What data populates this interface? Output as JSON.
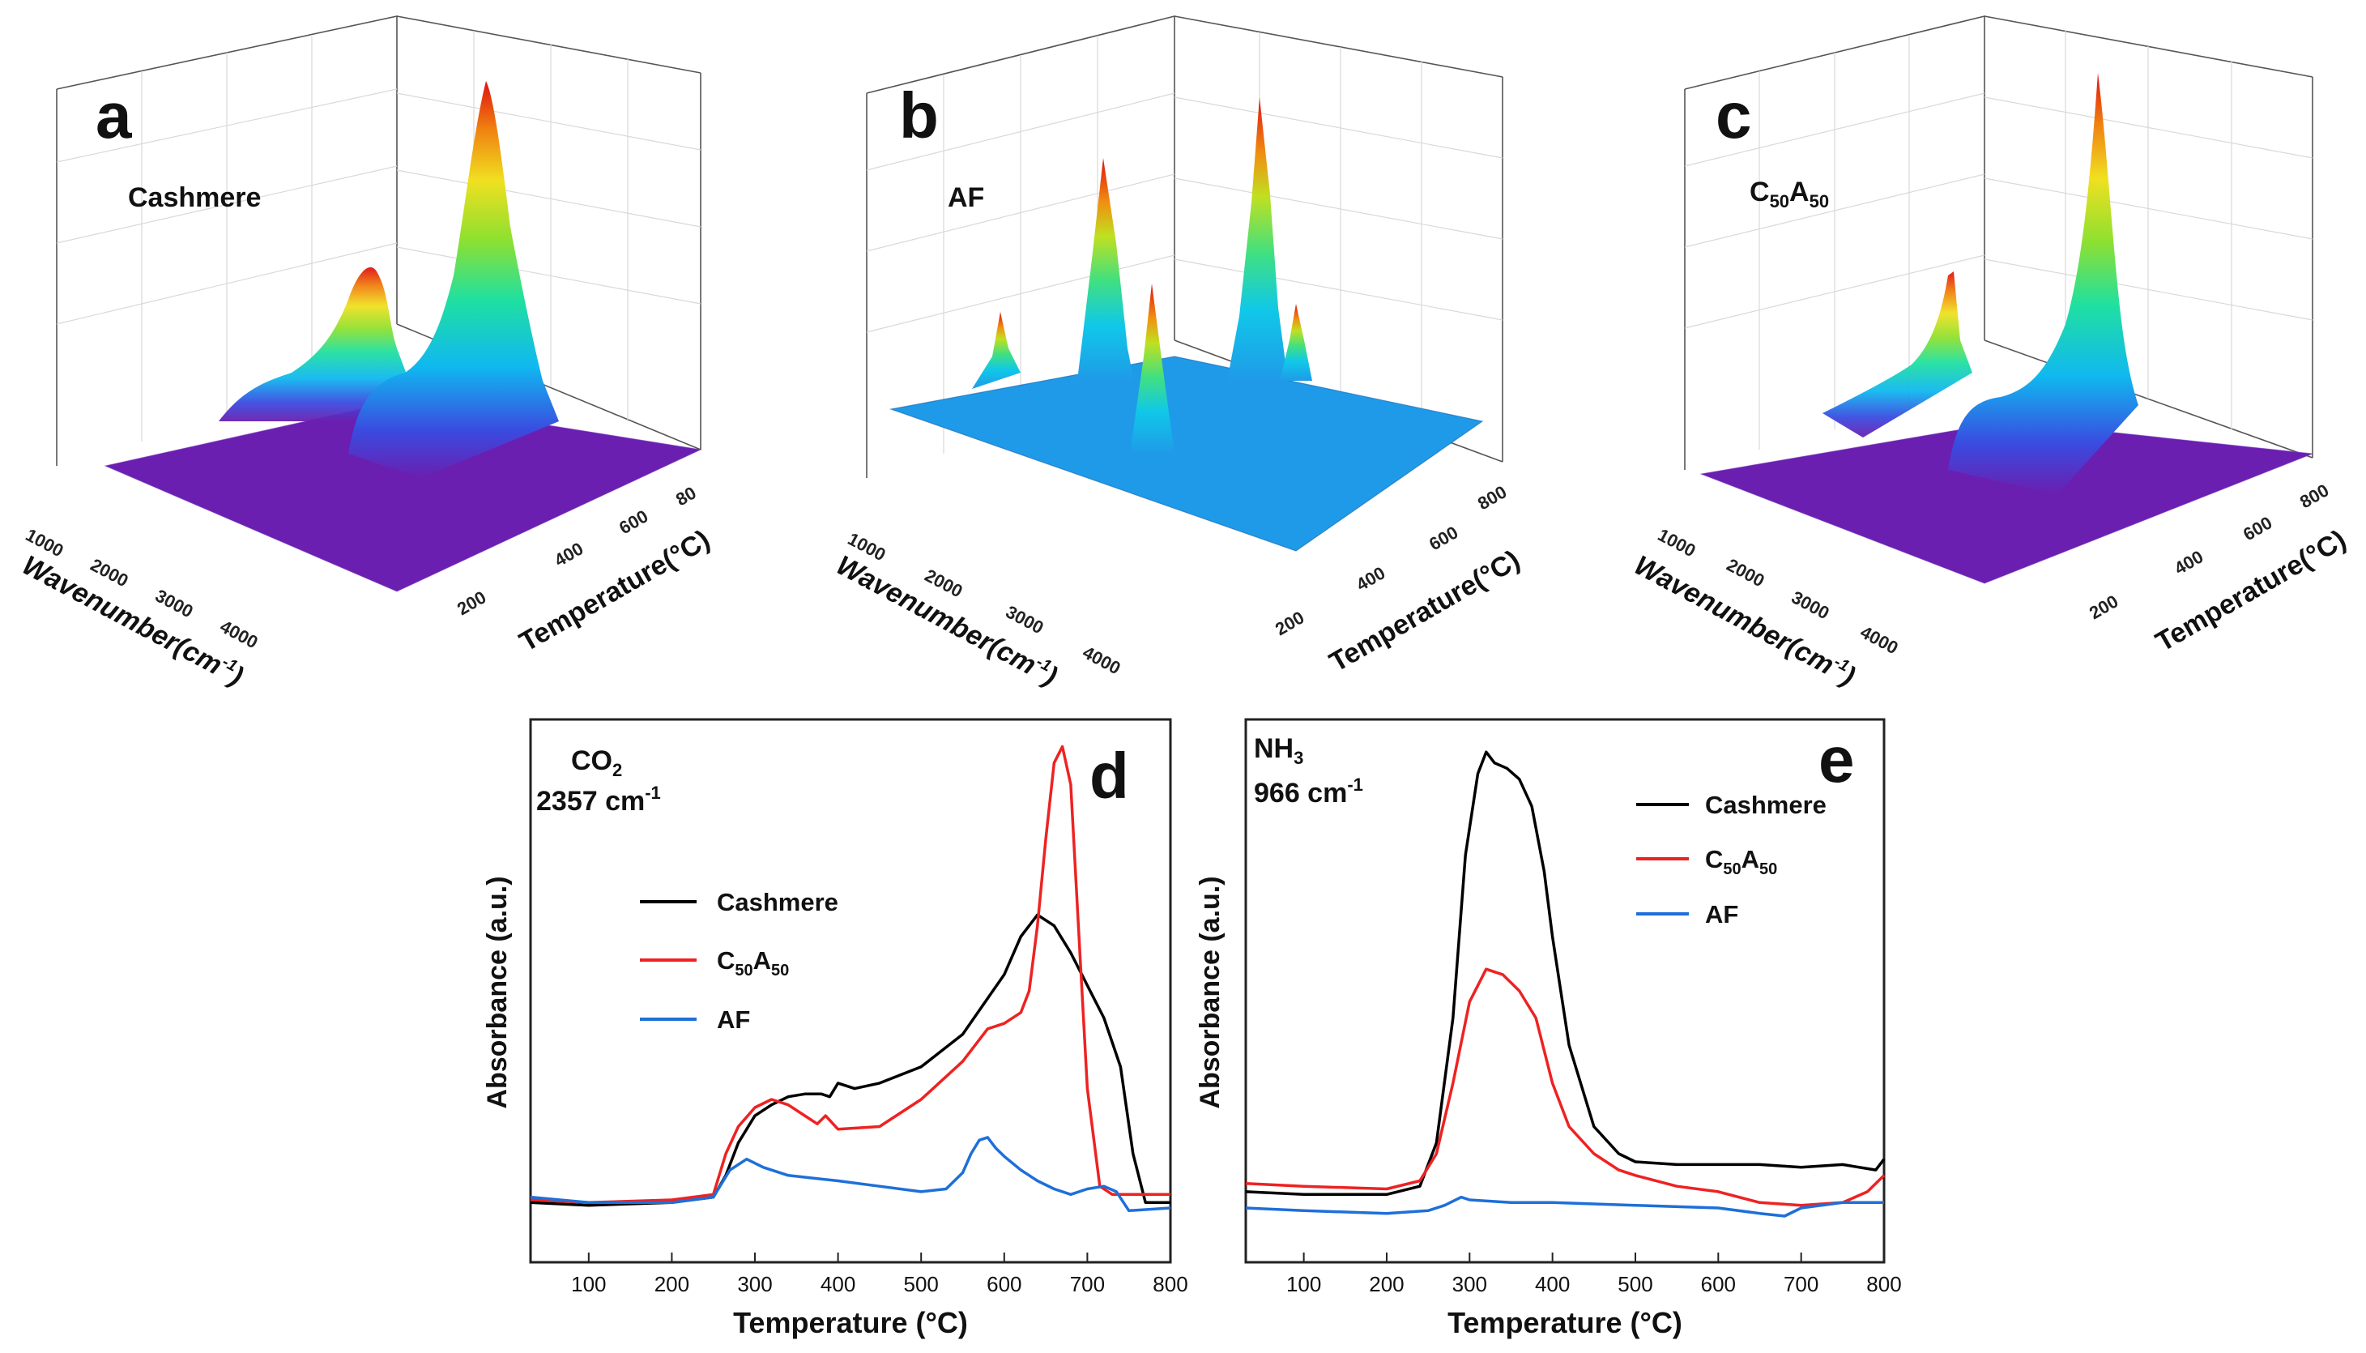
{
  "colors": {
    "cashmere": "#000000",
    "c50a50": "#ee2222",
    "af": "#1e6fd9",
    "surface_low": "#6a1fb0",
    "surface_af": "#1f9ae8"
  },
  "panels3d": [
    {
      "letter": "a",
      "name": "Cashmere",
      "subscript": "",
      "xaxis_title": "Wavenumber(cm",
      "xaxis_sup": "-1",
      "xaxis_close": ")",
      "xticks": [
        "1000",
        "2000",
        "3000",
        "4000"
      ],
      "yaxis_title": "Temperature(°C)",
      "yticks": [
        "200",
        "400",
        "600",
        "80"
      ]
    },
    {
      "letter": "b",
      "name": "AF",
      "subscript": "",
      "xaxis_title": "Wavenumber(cm",
      "xaxis_sup": "-1",
      "xaxis_close": ")",
      "xticks": [
        "1000",
        "2000",
        "3000",
        "4000"
      ],
      "yaxis_title": "Temperature(°C)",
      "yticks": [
        "200",
        "400",
        "600",
        "800"
      ]
    },
    {
      "letter": "c",
      "name": "C",
      "subscript": "50",
      "name2": "A",
      "subscript2": "50",
      "xaxis_title": "Wavenumber(cm",
      "xaxis_sup": "-1",
      "xaxis_close": ")",
      "xticks": [
        "1000",
        "2000",
        "3000",
        "4000"
      ],
      "yaxis_title": "Temperature(°C)",
      "yticks": [
        "200",
        "400",
        "600",
        "800"
      ]
    }
  ],
  "chart_data": [
    {
      "type": "line",
      "panel": "d",
      "label_main": "CO",
      "label_sub": "2",
      "label_wave": "2357 cm",
      "label_wave_sup": "-1",
      "xlabel": "Temperature (°C)",
      "ylabel": "Absorbance (a.u.)",
      "xlim": [
        30,
        800
      ],
      "ylim": [
        0,
        1
      ],
      "xticks": [
        100,
        200,
        300,
        400,
        500,
        600,
        700,
        800
      ],
      "legend": [
        "Cashmere",
        "C50A50",
        "AF"
      ],
      "legend_position": "center-left",
      "series": [
        {
          "name": "Cashmere",
          "color_key": "cashmere",
          "x": [
            30,
            100,
            200,
            250,
            265,
            280,
            300,
            320,
            340,
            360,
            380,
            390,
            400,
            420,
            450,
            500,
            550,
            600,
            620,
            640,
            660,
            680,
            700,
            720,
            740,
            755,
            770,
            800
          ],
          "y": [
            0.11,
            0.105,
            0.11,
            0.12,
            0.16,
            0.22,
            0.27,
            0.29,
            0.305,
            0.31,
            0.31,
            0.305,
            0.33,
            0.32,
            0.33,
            0.36,
            0.42,
            0.53,
            0.6,
            0.64,
            0.62,
            0.57,
            0.51,
            0.45,
            0.36,
            0.2,
            0.11,
            0.11
          ]
        },
        {
          "name": "C50A50",
          "color_key": "c50a50",
          "x": [
            30,
            100,
            200,
            250,
            265,
            280,
            300,
            320,
            340,
            360,
            375,
            385,
            400,
            450,
            500,
            550,
            580,
            600,
            620,
            630,
            640,
            650,
            660,
            670,
            680,
            690,
            700,
            715,
            730,
            750,
            800
          ],
          "y": [
            0.115,
            0.11,
            0.115,
            0.125,
            0.2,
            0.25,
            0.285,
            0.3,
            0.29,
            0.27,
            0.255,
            0.27,
            0.245,
            0.25,
            0.3,
            0.37,
            0.43,
            0.44,
            0.46,
            0.5,
            0.62,
            0.78,
            0.92,
            0.95,
            0.88,
            0.6,
            0.32,
            0.14,
            0.125,
            0.125,
            0.125
          ]
        },
        {
          "name": "AF",
          "color_key": "af",
          "x": [
            30,
            100,
            200,
            250,
            270,
            290,
            310,
            340,
            400,
            450,
            500,
            530,
            550,
            560,
            570,
            580,
            590,
            600,
            620,
            640,
            660,
            680,
            700,
            720,
            735,
            750,
            800
          ],
          "y": [
            0.12,
            0.11,
            0.11,
            0.12,
            0.17,
            0.19,
            0.175,
            0.16,
            0.15,
            0.14,
            0.13,
            0.135,
            0.165,
            0.2,
            0.225,
            0.23,
            0.21,
            0.195,
            0.17,
            0.15,
            0.135,
            0.125,
            0.135,
            0.14,
            0.13,
            0.095,
            0.1
          ]
        }
      ]
    },
    {
      "type": "line",
      "panel": "e",
      "label_main": "NH",
      "label_sub": "3",
      "label_wave": "966 cm",
      "label_wave_sup": "-1",
      "xlabel": "Temperature (°C)",
      "ylabel": "Absorbance (a.u.)",
      "xlim": [
        30,
        800
      ],
      "ylim": [
        0,
        1
      ],
      "xticks": [
        100,
        200,
        300,
        400,
        500,
        600,
        700,
        800
      ],
      "legend": [
        "Cashmere",
        "C50A50",
        "AF"
      ],
      "legend_position": "top-right",
      "series": [
        {
          "name": "Cashmere",
          "color_key": "cashmere",
          "x": [
            30,
            100,
            200,
            240,
            260,
            280,
            295,
            310,
            320,
            330,
            345,
            360,
            375,
            390,
            400,
            420,
            450,
            480,
            500,
            550,
            600,
            650,
            700,
            750,
            790,
            800
          ],
          "y": [
            0.13,
            0.125,
            0.125,
            0.14,
            0.22,
            0.45,
            0.75,
            0.9,
            0.94,
            0.92,
            0.91,
            0.89,
            0.84,
            0.72,
            0.6,
            0.4,
            0.25,
            0.2,
            0.185,
            0.18,
            0.18,
            0.18,
            0.175,
            0.18,
            0.17,
            0.19
          ]
        },
        {
          "name": "C50A50",
          "color_key": "c50a50",
          "x": [
            30,
            100,
            200,
            240,
            260,
            280,
            300,
            320,
            340,
            360,
            380,
            400,
            420,
            450,
            480,
            500,
            550,
            600,
            650,
            700,
            750,
            780,
            800
          ],
          "y": [
            0.145,
            0.14,
            0.135,
            0.15,
            0.2,
            0.33,
            0.48,
            0.54,
            0.53,
            0.5,
            0.45,
            0.33,
            0.25,
            0.2,
            0.17,
            0.16,
            0.14,
            0.13,
            0.11,
            0.105,
            0.11,
            0.13,
            0.16
          ]
        },
        {
          "name": "AF",
          "color_key": "af",
          "x": [
            30,
            100,
            200,
            250,
            270,
            290,
            300,
            350,
            400,
            500,
            600,
            650,
            680,
            700,
            750,
            800
          ],
          "y": [
            0.1,
            0.095,
            0.09,
            0.095,
            0.105,
            0.12,
            0.115,
            0.11,
            0.11,
            0.105,
            0.1,
            0.09,
            0.085,
            0.1,
            0.11,
            0.11
          ]
        }
      ]
    }
  ]
}
